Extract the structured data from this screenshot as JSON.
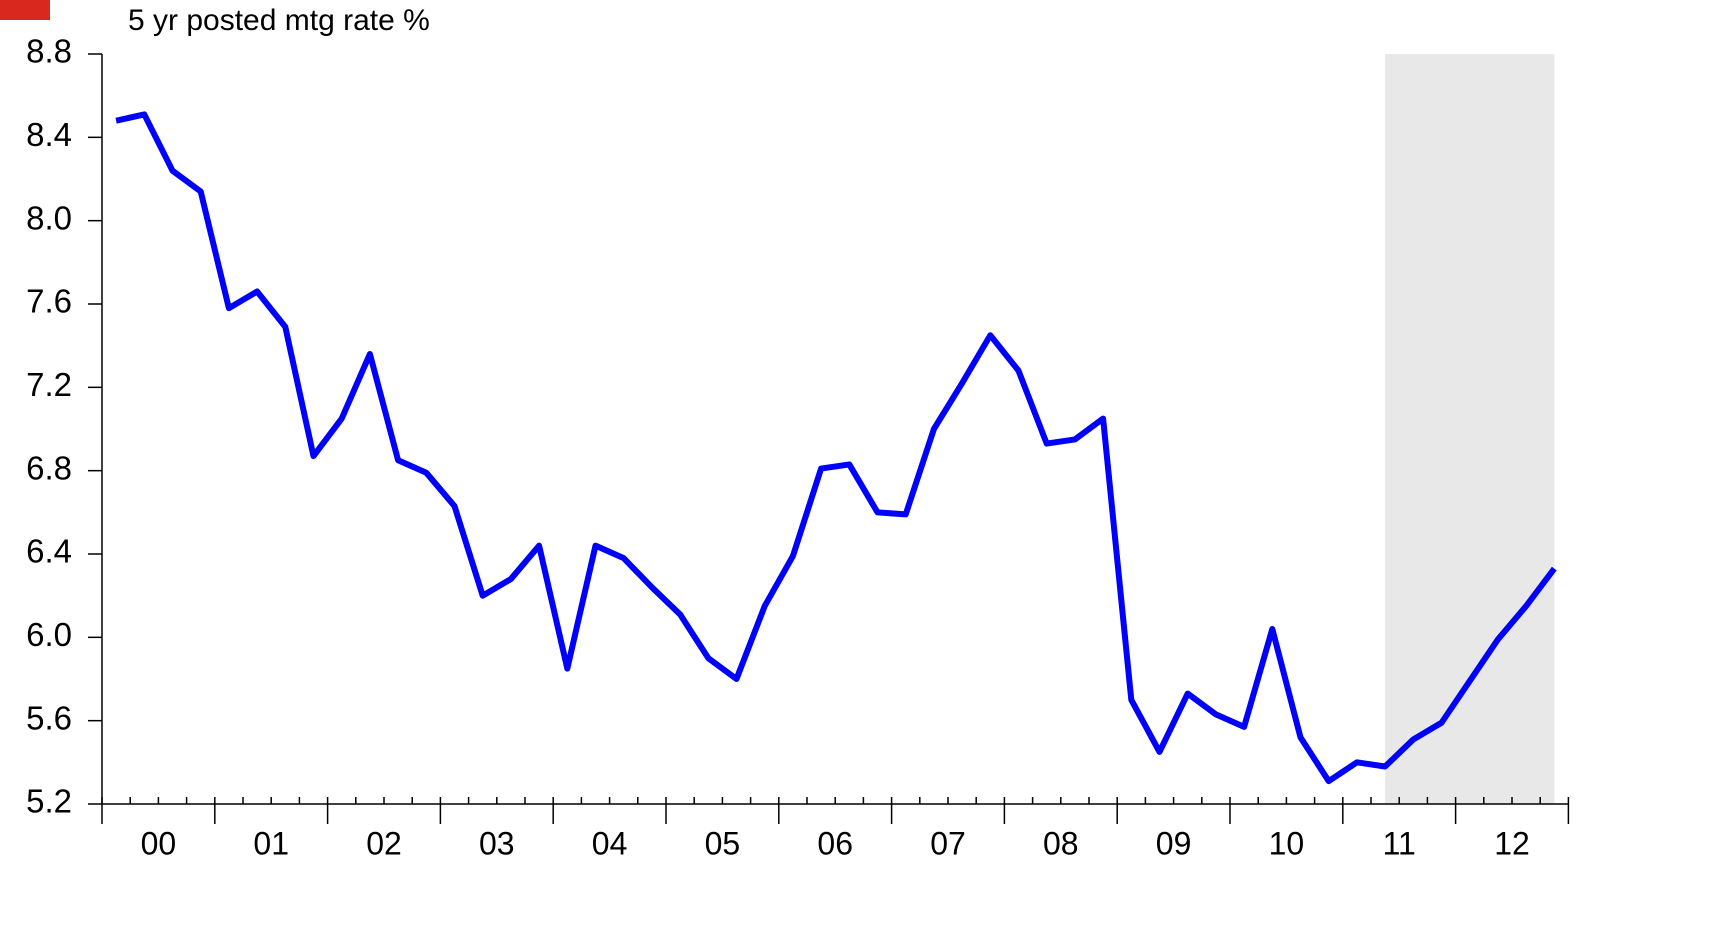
{
  "chart_data": {
    "type": "line",
    "title": "5 yr posted mtg rate %",
    "year_labels": [
      "00",
      "01",
      "02",
      "03",
      "04",
      "05",
      "06",
      "07",
      "08",
      "09",
      "10",
      "11",
      "12"
    ],
    "periods_per_year": 4,
    "series": [
      {
        "name": "5 yr posted mtg rate",
        "color": "#0000ff",
        "values": [
          8.48,
          8.51,
          8.24,
          8.14,
          7.58,
          7.66,
          7.49,
          6.87,
          7.05,
          7.36,
          6.85,
          6.79,
          6.63,
          6.2,
          6.28,
          6.44,
          5.85,
          6.44,
          6.38,
          6.24,
          6.11,
          5.9,
          5.8,
          6.15,
          6.39,
          6.81,
          6.83,
          6.6,
          6.59,
          7.0,
          7.22,
          7.45,
          7.28,
          6.93,
          6.95,
          7.05,
          5.7,
          5.45,
          5.73,
          5.63,
          5.57,
          6.04,
          5.52,
          5.31,
          5.4,
          5.38,
          5.51,
          5.59,
          5.79,
          5.99,
          6.15,
          6.33
        ]
      }
    ],
    "shaded_from": 45,
    "shade_color": "#e8e8e8",
    "ylim": [
      5.2,
      8.8
    ],
    "yticks": [
      {
        "value": 5.2,
        "label": "5.2"
      },
      {
        "value": 5.6,
        "label": "5.6"
      },
      {
        "value": 6.0,
        "label": "6.0"
      },
      {
        "value": 6.4,
        "label": "6.4"
      },
      {
        "value": 6.8,
        "label": "6.8"
      },
      {
        "value": 7.2,
        "label": "7.2"
      },
      {
        "value": 7.6,
        "label": "7.6"
      },
      {
        "value": 8.0,
        "label": "8.0"
      },
      {
        "value": 8.4,
        "label": "8.4"
      },
      {
        "value": 8.8,
        "label": "8.8"
      }
    ]
  }
}
